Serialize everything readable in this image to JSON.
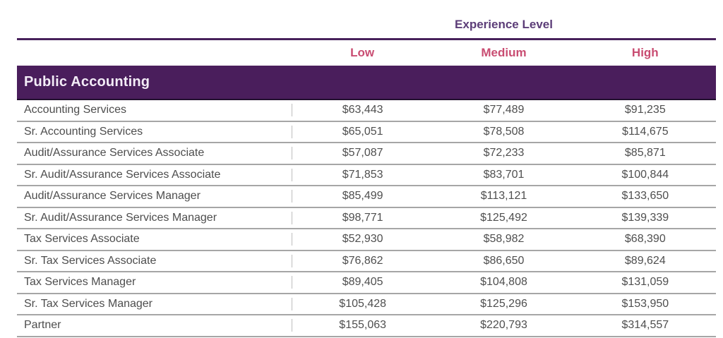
{
  "table": {
    "experience_header": "Experience Level",
    "columns": [
      "Low",
      "Medium",
      "High"
    ],
    "section_title": "Public Accounting",
    "rows": [
      {
        "title": "Accounting Services",
        "low": "$63,443",
        "medium": "$77,489",
        "high": "$91,235"
      },
      {
        "title": "Sr. Accounting Services",
        "low": "$65,051",
        "medium": "$78,508",
        "high": "$114,675"
      },
      {
        "title": "Audit/Assurance Services Associate",
        "low": "$57,087",
        "medium": "$72,233",
        "high": "$85,871"
      },
      {
        "title": "Sr. Audit/Assurance Services Associate",
        "low": "$71,853",
        "medium": "$83,701",
        "high": "$100,844"
      },
      {
        "title": "Audit/Assurance Services Manager",
        "low": "$85,499",
        "medium": "$113,121",
        "high": "$133,650"
      },
      {
        "title": "Sr. Audit/Assurance Services Manager",
        "low": "$98,771",
        "medium": "$125,492",
        "high": "$139,339"
      },
      {
        "title": "Tax Services Associate",
        "low": "$52,930",
        "medium": "$58,982",
        "high": "$68,390"
      },
      {
        "title": "Sr. Tax Services Associate",
        "low": "$76,862",
        "medium": "$86,650",
        "high": "$89,624"
      },
      {
        "title": "Tax Services Manager",
        "low": "$89,405",
        "medium": "$104,808",
        "high": "$131,059"
      },
      {
        "title": "Sr. Tax Services Manager",
        "low": "$105,428",
        "medium": "$125,296",
        "high": "$153,950"
      },
      {
        "title": "Partner",
        "low": "$155,063",
        "medium": "$220,793",
        "high": "$314,557"
      }
    ],
    "colors": {
      "section_bar": "#4a1e5c",
      "experience_header_text": "#5c3d78",
      "column_header_text": "#c94d72",
      "row_text": "#4d4d4d",
      "grid_line": "#a6a6a6"
    }
  }
}
